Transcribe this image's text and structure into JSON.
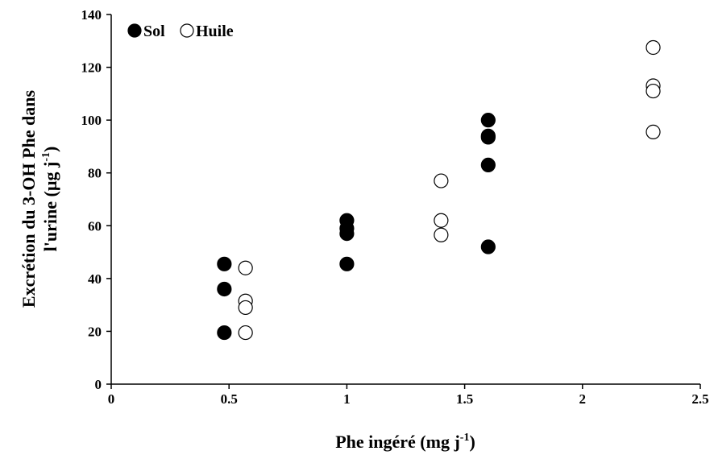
{
  "chart_data": {
    "type": "scatter",
    "xlabel": "Phe ingéré (mg j",
    "xlabel_sup": "-1",
    "xlabel_end": ")",
    "ylabel": "Excrétion du 3-OH Phe dans",
    "ylabel_line2": "l'urine (µg j",
    "ylabel_sup": "-1",
    "ylabel_end": ")",
    "xlim": [
      0,
      2.5
    ],
    "ylim": [
      0,
      140
    ],
    "xticks": [
      0,
      0.5,
      1,
      1.5,
      2,
      2.5
    ],
    "xtick_labels": [
      "0",
      "0.5",
      "1",
      "1.5",
      "2",
      "2.5"
    ],
    "yticks": [
      0,
      20,
      40,
      60,
      80,
      100,
      120,
      140
    ],
    "ytick_labels": [
      "0",
      "20",
      "40",
      "60",
      "80",
      "100",
      "120",
      "140"
    ],
    "grid": false,
    "legend_position": "top-left",
    "series": [
      {
        "name": "Sol",
        "marker": "filled-circle",
        "color": "#000000",
        "points": [
          [
            0.48,
            45.5
          ],
          [
            0.48,
            36
          ],
          [
            0.48,
            19.5
          ],
          [
            1.0,
            62
          ],
          [
            1.0,
            59
          ],
          [
            1.0,
            57
          ],
          [
            1.0,
            45.5
          ],
          [
            1.6,
            100
          ],
          [
            1.6,
            94
          ],
          [
            1.6,
            93.5
          ],
          [
            1.6,
            83
          ],
          [
            1.6,
            52
          ]
        ]
      },
      {
        "name": "Huile",
        "marker": "open-circle",
        "color": "#000000",
        "points": [
          [
            0.57,
            44
          ],
          [
            0.57,
            31.5
          ],
          [
            0.57,
            29
          ],
          [
            0.57,
            19.5
          ],
          [
            1.4,
            77
          ],
          [
            1.4,
            62
          ],
          [
            1.4,
            56.5
          ],
          [
            2.3,
            127.5
          ],
          [
            2.3,
            113
          ],
          [
            2.3,
            111
          ],
          [
            2.3,
            95.5
          ]
        ]
      }
    ]
  }
}
